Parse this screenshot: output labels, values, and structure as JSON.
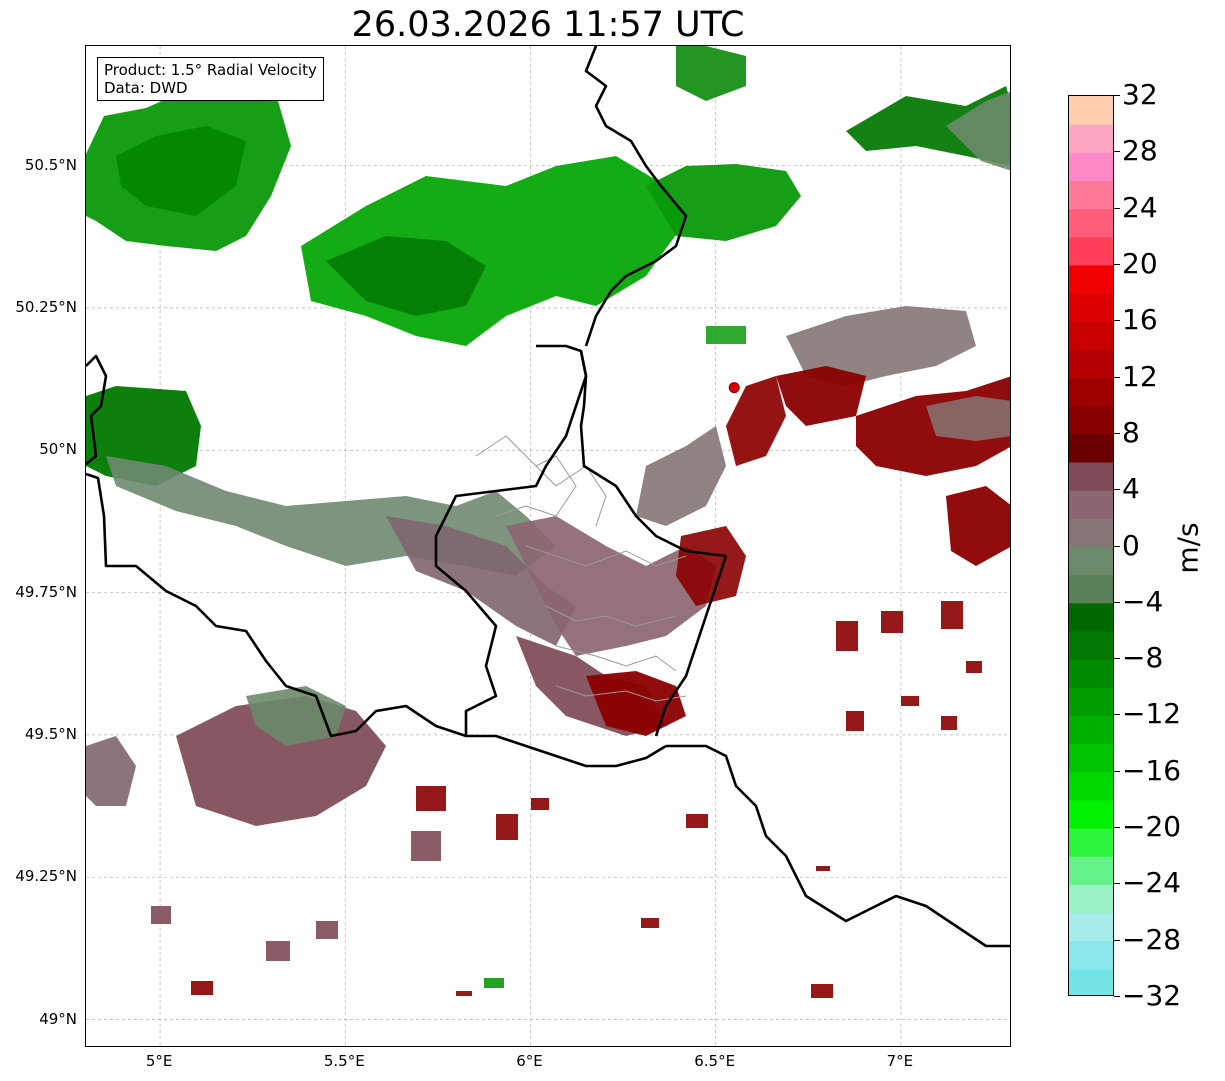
{
  "title": "26.03.2026 11:57 UTC",
  "info_box": {
    "product": "Product: 1.5° Radial Velocity",
    "data": "Data: DWD"
  },
  "map": {
    "lon_range": [
      4.8,
      7.3
    ],
    "lat_range": [
      48.95,
      50.71
    ],
    "x_ticks": [
      {
        "value": 5.0,
        "label": "5°E"
      },
      {
        "value": 5.5,
        "label": "5.5°E"
      },
      {
        "value": 6.0,
        "label": "6°E"
      },
      {
        "value": 6.5,
        "label": "6.5°E"
      },
      {
        "value": 7.0,
        "label": "7°E"
      }
    ],
    "y_ticks": [
      {
        "value": 50.5,
        "label": "50.5°N"
      },
      {
        "value": 50.25,
        "label": "50.25°N"
      },
      {
        "value": 50.0,
        "label": "50°N"
      },
      {
        "value": 49.75,
        "label": "49.75°N"
      },
      {
        "value": 49.5,
        "label": "49.5°N"
      },
      {
        "value": 49.25,
        "label": "49.25°N"
      },
      {
        "value": 49.0,
        "label": "49°N"
      }
    ],
    "grid": true,
    "radar_site": {
      "lon": 6.55,
      "lat": 50.11
    },
    "colors": {
      "border": "#000000",
      "admin": "#9a9a9a",
      "grid": "#b0b0b0",
      "radar_site": "#e00000"
    }
  },
  "colorbar": {
    "unit": "m/s",
    "min": -32,
    "max": 32,
    "ticks": [
      -32,
      -28,
      -24,
      -20,
      -16,
      -12,
      -8,
      -4,
      0,
      4,
      8,
      12,
      16,
      20,
      24,
      28,
      32
    ],
    "tick_labels": [
      "−32",
      "−28",
      "−24",
      "−20",
      "−16",
      "−12",
      "−8",
      "−4",
      "0",
      "4",
      "8",
      "12",
      "16",
      "20",
      "24",
      "28",
      "32"
    ],
    "colors": [
      "#72e4e6",
      "#88e8ea",
      "#a8ecec",
      "#9af2c8",
      "#66f28a",
      "#2cf63c",
      "#00f200",
      "#00d800",
      "#00c400",
      "#00b000",
      "#009c00",
      "#008a00",
      "#007800",
      "#006800",
      "#5a805a",
      "#6b8a6b",
      "#857575",
      "#8b6570",
      "#7d4a55",
      "#6b0000",
      "#870000",
      "#9e0000",
      "#b40000",
      "#c80000",
      "#dc0000",
      "#f00000",
      "#ff3f5a",
      "#ff5e7a",
      "#ff7a9a",
      "#ff88c8",
      "#ffa8c4",
      "#ffcfb0"
    ]
  }
}
